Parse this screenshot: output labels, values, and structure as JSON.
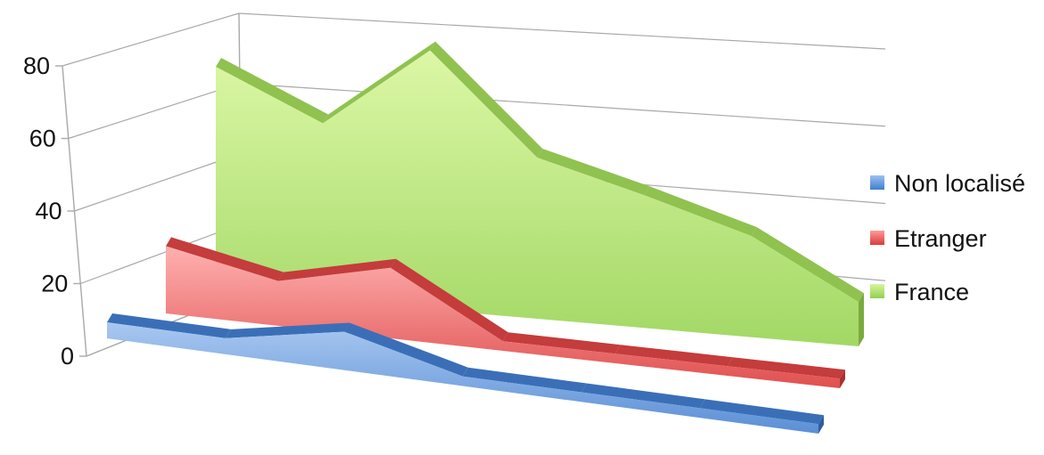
{
  "chart_data": {
    "type": "area",
    "style": "3d-area",
    "title": "",
    "xlabel": "",
    "ylabel": "",
    "ylim": [
      0,
      80
    ],
    "y_ticks": [
      0,
      20,
      40,
      60,
      80
    ],
    "x": [
      1,
      2,
      3,
      4,
      5,
      6,
      7
    ],
    "grid": true,
    "legend_position": "right",
    "series": [
      {
        "name": "Non localisé",
        "color": "#4f81bd",
        "values": [
          5,
          5,
          12,
          3,
          3,
          3,
          3
        ]
      },
      {
        "name": "Etranger",
        "color": "#e05252",
        "values": [
          21,
          14,
          22,
          3,
          3,
          3,
          3
        ]
      },
      {
        "name": "France",
        "color": "#a6d86c",
        "values": [
          71,
          56,
          82,
          51,
          42,
          32,
          14
        ]
      }
    ],
    "legend_order": [
      "Non localisé",
      "Etranger",
      "France"
    ]
  }
}
